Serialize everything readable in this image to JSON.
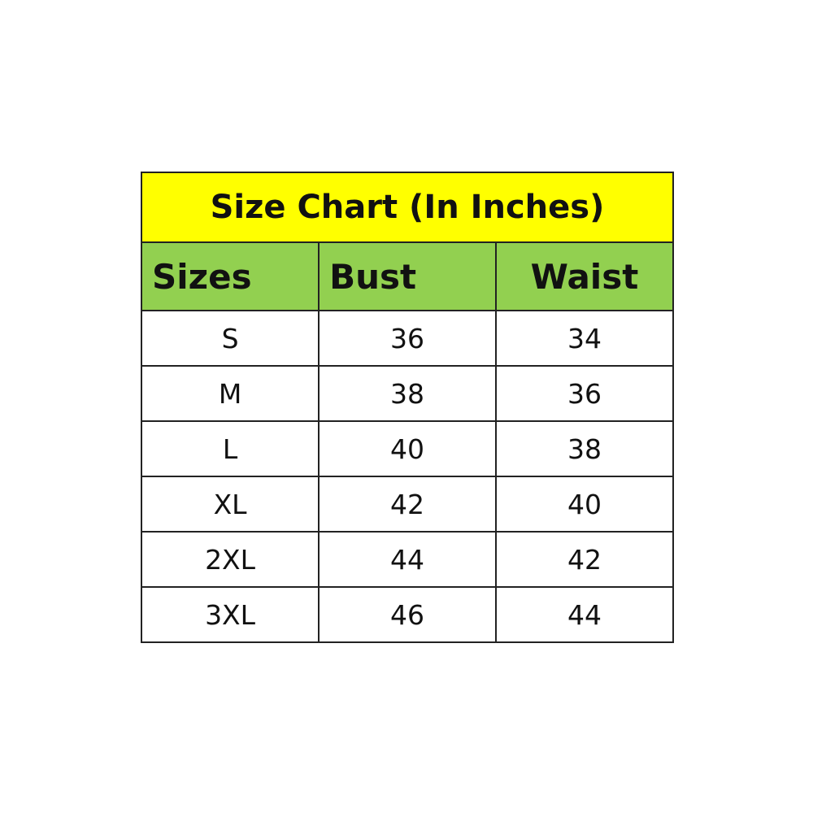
{
  "title": "Size Chart (In Inches)",
  "headers": [
    "Sizes",
    "Bust",
    "Waist"
  ],
  "rows": [
    [
      "S",
      "36",
      "34"
    ],
    [
      "M",
      "38",
      "36"
    ],
    [
      "L",
      "40",
      "38"
    ],
    [
      "XL",
      "42",
      "40"
    ],
    [
      "2XL",
      "44",
      "42"
    ],
    [
      "3XL",
      "46",
      "44"
    ]
  ],
  "colors": {
    "title_bg": "#ffff00",
    "header_bg": "#92d050",
    "border": "#222222"
  }
}
